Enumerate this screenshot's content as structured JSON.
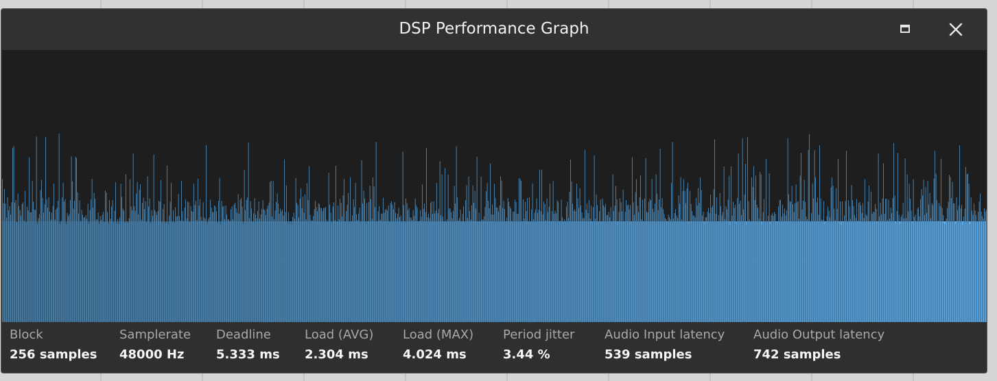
{
  "window": {
    "title": "DSP Performance Graph",
    "maximize_icon": "maximize-icon",
    "close_icon": "close-icon"
  },
  "colors": {
    "graph_background": "#1e1e1e",
    "bar_start": "#2b4457",
    "bar_end": "#63b9fb",
    "window_background": "#2f2f2f"
  },
  "stats": [
    {
      "label": "Block",
      "value": "256 samples"
    },
    {
      "label": "Samplerate",
      "value": "48000 Hz"
    },
    {
      "label": "Deadline",
      "value": "5.333 ms"
    },
    {
      "label": "Load (AVG)",
      "value": "2.304 ms"
    },
    {
      "label": "Load (MAX)",
      "value": "4.024 ms"
    },
    {
      "label": "Period jitter",
      "value": "3.44 %"
    },
    {
      "label": "Audio Input latency",
      "value": "539 samples"
    },
    {
      "label": "Audio Output latency",
      "value": "742 samples"
    }
  ]
}
